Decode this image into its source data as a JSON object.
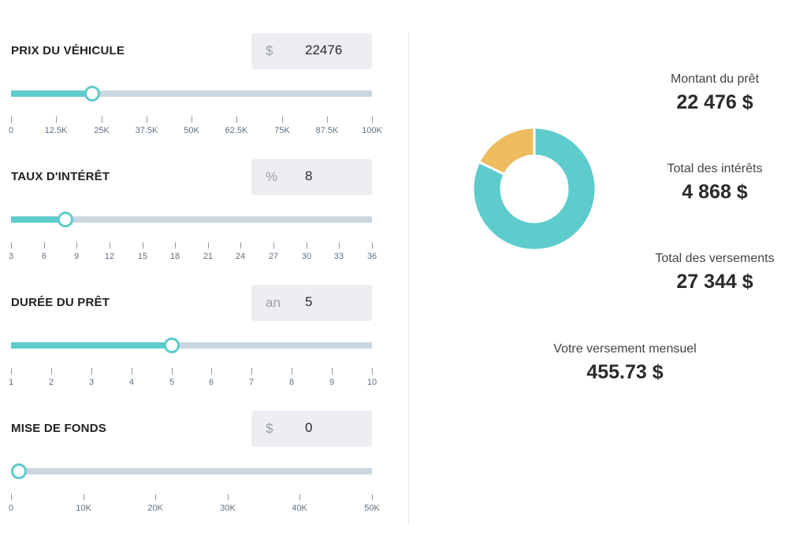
{
  "colors": {
    "accent": "#5ecbcc",
    "secondary": "#ecbc5f",
    "track": "#c9d6e0",
    "field_bg": "#eceef2"
  },
  "fields": [
    {
      "key": "vehicle_price",
      "label": "PRIX DU VÉHICULE",
      "unit": "$",
      "value": "22476",
      "slider": {
        "min": 0,
        "max": 100000,
        "value": 22476
      },
      "ticks": [
        {
          "v": 0,
          "label": "0"
        },
        {
          "v": 12500,
          "label": "12.5K"
        },
        {
          "v": 25000,
          "label": "25K"
        },
        {
          "v": 37500,
          "label": "37.5K"
        },
        {
          "v": 50000,
          "label": "50K"
        },
        {
          "v": 62500,
          "label": "62.5K"
        },
        {
          "v": 75000,
          "label": "75K"
        },
        {
          "v": 87500,
          "label": "87.5K"
        },
        {
          "v": 100000,
          "label": "100K"
        }
      ]
    },
    {
      "key": "interest_rate",
      "label": "TAUX D'INTÉRÊT",
      "unit": "%",
      "value": "8",
      "slider": {
        "min": 3,
        "max": 36,
        "value": 8
      },
      "ticks": [
        {
          "v": 3,
          "label": "3"
        },
        {
          "v": 6,
          "label": "6"
        },
        {
          "v": 9,
          "label": "9"
        },
        {
          "v": 12,
          "label": "12"
        },
        {
          "v": 15,
          "label": "15"
        },
        {
          "v": 18,
          "label": "18"
        },
        {
          "v": 21,
          "label": "21"
        },
        {
          "v": 24,
          "label": "24"
        },
        {
          "v": 27,
          "label": "27"
        },
        {
          "v": 30,
          "label": "30"
        },
        {
          "v": 33,
          "label": "33"
        },
        {
          "v": 36,
          "label": "36"
        }
      ]
    },
    {
      "key": "loan_term",
      "label": "DURÉE DU PRÊT",
      "unit": "an",
      "value": "5",
      "slider": {
        "min": 1,
        "max": 10,
        "value": 5
      },
      "ticks": [
        {
          "v": 1,
          "label": "1"
        },
        {
          "v": 2,
          "label": "2"
        },
        {
          "v": 3,
          "label": "3"
        },
        {
          "v": 4,
          "label": "4"
        },
        {
          "v": 5,
          "label": "5"
        },
        {
          "v": 6,
          "label": "6"
        },
        {
          "v": 7,
          "label": "7"
        },
        {
          "v": 8,
          "label": "8"
        },
        {
          "v": 9,
          "label": "9"
        },
        {
          "v": 10,
          "label": "10"
        }
      ]
    },
    {
      "key": "down_payment",
      "label": "MISE DE FONDS",
      "unit": "$",
      "value": "0",
      "slider": {
        "min": 0,
        "max": 50000,
        "value": 0
      },
      "ticks": [
        {
          "v": 0,
          "label": "0"
        },
        {
          "v": 10000,
          "label": "10K"
        },
        {
          "v": 20000,
          "label": "20K"
        },
        {
          "v": 30000,
          "label": "30K"
        },
        {
          "v": 40000,
          "label": "40K"
        },
        {
          "v": 50000,
          "label": "50K"
        }
      ]
    }
  ],
  "summary": {
    "loan_amount": {
      "label": "Montant du prêt",
      "value": "22 476 $"
    },
    "total_interest": {
      "label": "Total des intérêts",
      "value": "4 868 $"
    },
    "total_payments": {
      "label": "Total des versements",
      "value": "27 344 $"
    },
    "monthly_payment": {
      "label": "Votre versement mensuel",
      "value": "455.73 $"
    }
  },
  "chart_data": {
    "type": "pie",
    "donut": true,
    "series": [
      {
        "value": 22476,
        "color": "#5ecbcc"
      },
      {
        "value": 4868,
        "color": "#ecbc5f"
      }
    ]
  }
}
